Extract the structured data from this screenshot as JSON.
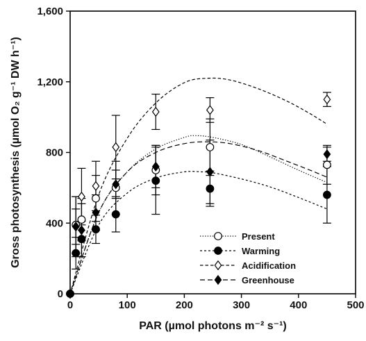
{
  "chart_data": {
    "type": "scatter",
    "xlabel": "PAR (µmol photons m⁻² s⁻¹)",
    "ylabel": "Gross photosynthesis (µmol O₂ g⁻¹ DW h⁻¹)",
    "xlim": [
      0,
      500
    ],
    "ylim": [
      0,
      1600
    ],
    "x_ticks": [
      0,
      100,
      200,
      300,
      400,
      500
    ],
    "y_ticks": [
      0,
      400,
      800,
      1200,
      1600
    ],
    "x_tick_labels": [
      "0",
      "100",
      "200",
      "300",
      "400",
      "500"
    ],
    "y_tick_labels": [
      "0",
      "400",
      "800",
      "1,200",
      "1,600"
    ],
    "grid": false,
    "legend": "bottom-right",
    "series": [
      {
        "name": "Present",
        "marker": "open-circle",
        "line": "dotted",
        "color": "#000000",
        "x": [
          0,
          10,
          20,
          45,
          80,
          150,
          245,
          450
        ],
        "y": [
          0,
          390,
          420,
          540,
          600,
          700,
          830,
          730
        ],
        "err": [
          0,
          160,
          120,
          130,
          150,
          140,
          160,
          110
        ],
        "fit": [
          [
            0,
            0
          ],
          [
            50,
            460
          ],
          [
            100,
            690
          ],
          [
            150,
            820
          ],
          [
            200,
            885
          ],
          [
            220,
            895
          ],
          [
            250,
            885
          ],
          [
            300,
            845
          ],
          [
            350,
            775
          ],
          [
            400,
            700
          ],
          [
            450,
            630
          ]
        ]
      },
      {
        "name": "Warming",
        "marker": "filled-circle",
        "line": "short-dash",
        "color": "#000000",
        "x": [
          0,
          10,
          20,
          45,
          80,
          150,
          245,
          450
        ],
        "y": [
          0,
          230,
          310,
          365,
          450,
          640,
          595,
          560
        ],
        "err": [
          0,
          90,
          100,
          80,
          100,
          190,
          100,
          160
        ],
        "fit": [
          [
            0,
            0
          ],
          [
            50,
            390
          ],
          [
            100,
            570
          ],
          [
            150,
            655
          ],
          [
            200,
            690
          ],
          [
            230,
            690
          ],
          [
            250,
            685
          ],
          [
            300,
            650
          ],
          [
            350,
            605
          ],
          [
            400,
            545
          ],
          [
            450,
            480
          ]
        ]
      },
      {
        "name": "Acidification",
        "marker": "open-diamond",
        "line": "dashed",
        "color": "#000000",
        "x": [
          0,
          10,
          20,
          45,
          80,
          150,
          245,
          450
        ],
        "y": [
          0,
          380,
          550,
          610,
          830,
          1030,
          1040,
          1100
        ],
        "err": [
          0,
          170,
          160,
          140,
          180,
          100,
          70,
          40
        ],
        "fit": [
          [
            0,
            0
          ],
          [
            50,
            560
          ],
          [
            100,
            880
          ],
          [
            150,
            1080
          ],
          [
            200,
            1195
          ],
          [
            240,
            1220
          ],
          [
            280,
            1210
          ],
          [
            330,
            1160
          ],
          [
            380,
            1090
          ],
          [
            420,
            1020
          ],
          [
            450,
            960
          ]
        ]
      },
      {
        "name": "Greenhouse",
        "marker": "filled-diamond",
        "line": "long-dash",
        "color": "#000000",
        "x": [
          0,
          10,
          20,
          45,
          80,
          150,
          245,
          450
        ],
        "y": [
          0,
          380,
          360,
          460,
          620,
          720,
          690,
          790
        ],
        "err": [
          0,
          100,
          150,
          100,
          80,
          120,
          180,
          40
        ],
        "fit": [
          [
            0,
            0
          ],
          [
            50,
            460
          ],
          [
            100,
            690
          ],
          [
            150,
            800
          ],
          [
            200,
            850
          ],
          [
            240,
            860
          ],
          [
            280,
            850
          ],
          [
            330,
            810
          ],
          [
            380,
            750
          ],
          [
            420,
            700
          ],
          [
            450,
            660
          ]
        ]
      }
    ]
  }
}
